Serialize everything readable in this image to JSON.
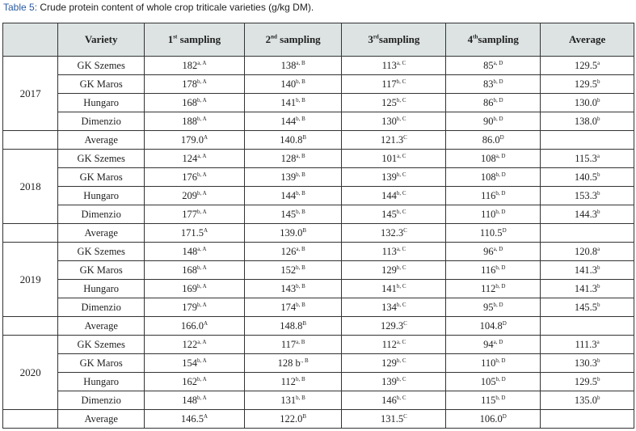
{
  "caption": {
    "label": "Table 5:",
    "text": " Crude protein content of whole crop triticale varieties (g/kg DM)."
  },
  "header": [
    {
      "text": "",
      "sup": ""
    },
    {
      "text": "Variety",
      "sup": ""
    },
    {
      "text": "1",
      "sup": "st",
      "rest": " sampling"
    },
    {
      "text": "2",
      "sup": "nd",
      "rest": " sampling"
    },
    {
      "text": "3",
      "sup": "rd",
      "rest": "sampling"
    },
    {
      "text": "4",
      "sup": "th",
      "rest": "sampling"
    },
    {
      "text": "Average",
      "sup": ""
    }
  ],
  "groups": [
    {
      "year": "2017",
      "rows": [
        {
          "variety": "GK Szemes",
          "cells": [
            [
              "182",
              "a, A"
            ],
            [
              "138",
              "a, B"
            ],
            [
              "113",
              "a, C"
            ],
            [
              "85",
              "a, D"
            ],
            [
              "129.5",
              "a"
            ]
          ]
        },
        {
          "variety": "GK Maros",
          "cells": [
            [
              "178",
              "b, A"
            ],
            [
              "140",
              "b, B"
            ],
            [
              "117",
              "b, C"
            ],
            [
              "83",
              "b, D"
            ],
            [
              "129.5",
              "b"
            ]
          ]
        },
        {
          "variety": "Hungaro",
          "cells": [
            [
              "168",
              "b, A"
            ],
            [
              "141",
              "b, B"
            ],
            [
              "125",
              "b, C"
            ],
            [
              "86",
              "b, D"
            ],
            [
              "130.0",
              "b"
            ]
          ]
        },
        {
          "variety": "Dimenzio",
          "cells": [
            [
              "188",
              "b, A"
            ],
            [
              "144",
              "b, B"
            ],
            [
              "130",
              "b, C"
            ],
            [
              "90",
              "b, D"
            ],
            [
              "138.0",
              "b"
            ]
          ]
        }
      ],
      "average": {
        "label": "Average",
        "cells": [
          [
            "179.0",
            "A"
          ],
          [
            "140.8",
            "B"
          ],
          [
            "121.3",
            "C"
          ],
          [
            "86.0",
            "D"
          ],
          [
            "",
            ""
          ]
        ]
      }
    },
    {
      "year": "2018",
      "rows": [
        {
          "variety": "GK Szemes",
          "cells": [
            [
              "124",
              "a, A"
            ],
            [
              "128",
              "a, B"
            ],
            [
              "101",
              "a, C"
            ],
            [
              "108",
              "a, D"
            ],
            [
              "115.3",
              "a"
            ]
          ]
        },
        {
          "variety": "GK Maros",
          "cells": [
            [
              "176",
              "b, A"
            ],
            [
              "139",
              "b, B"
            ],
            [
              "139",
              "b, C"
            ],
            [
              "108",
              "b, D"
            ],
            [
              "140.5",
              "b"
            ]
          ]
        },
        {
          "variety": "Hungaro",
          "cells": [
            [
              "209",
              "b, A"
            ],
            [
              "144",
              "b, B"
            ],
            [
              "144",
              "b, C"
            ],
            [
              "116",
              "b, D"
            ],
            [
              "153.3",
              "b"
            ]
          ]
        },
        {
          "variety": "Dimenzio",
          "cells": [
            [
              "177",
              "b, A"
            ],
            [
              "145",
              "b, B"
            ],
            [
              "145",
              "b, C"
            ],
            [
              "110",
              "b, D"
            ],
            [
              "144.3",
              "b"
            ]
          ]
        }
      ],
      "average": {
        "label": "Average",
        "cells": [
          [
            "171.5",
            "A"
          ],
          [
            "139.0",
            "B"
          ],
          [
            "132.3",
            "C"
          ],
          [
            "110.5",
            "D"
          ],
          [
            "",
            ""
          ]
        ]
      }
    },
    {
      "year": "2019",
      "rows": [
        {
          "variety": "GK Szemes",
          "cells": [
            [
              "148",
              "a, A"
            ],
            [
              "126",
              "a, B"
            ],
            [
              "113",
              "a, C"
            ],
            [
              "96",
              "a, D"
            ],
            [
              "120.8",
              "a"
            ]
          ]
        },
        {
          "variety": "GK Maros",
          "cells": [
            [
              "168",
              "b, A"
            ],
            [
              "152",
              "b, B"
            ],
            [
              "129",
              "b, C"
            ],
            [
              "116",
              "b, D"
            ],
            [
              "141.3",
              "b"
            ]
          ]
        },
        {
          "variety": "Hungaro",
          "cells": [
            [
              "169",
              "b, A"
            ],
            [
              "143",
              "b, B"
            ],
            [
              "141",
              "b, C"
            ],
            [
              "112",
              "b, D"
            ],
            [
              "141.3",
              "b"
            ]
          ]
        },
        {
          "variety": "Dimenzio",
          "cells": [
            [
              "179",
              "b, A"
            ],
            [
              "174",
              "b, B"
            ],
            [
              "134",
              "b, C"
            ],
            [
              "95",
              "b, D"
            ],
            [
              "145.5",
              "b"
            ]
          ]
        }
      ],
      "average": {
        "label": "Average",
        "cells": [
          [
            "166.0",
            "A"
          ],
          [
            "148.8",
            "B"
          ],
          [
            "129.3",
            "C"
          ],
          [
            "104.8",
            "D"
          ],
          [
            "",
            ""
          ]
        ]
      }
    },
    {
      "year": "2020",
      "rows": [
        {
          "variety": "GK Szemes",
          "cells": [
            [
              "122",
              "a, A"
            ],
            [
              "117",
              "a, B"
            ],
            [
              "112",
              "a, C"
            ],
            [
              "94",
              "a, D"
            ],
            [
              "111.3",
              "a"
            ]
          ]
        },
        {
          "variety": "GK Maros",
          "cells": [
            [
              "154",
              "b, A"
            ],
            [
              "128 b",
              "., B"
            ],
            [
              "129",
              "b, C"
            ],
            [
              "110",
              "b, D"
            ],
            [
              "130.3",
              "b"
            ]
          ]
        },
        {
          "variety": "Hungaro",
          "cells": [
            [
              "162",
              "b, A"
            ],
            [
              "112",
              "b, B"
            ],
            [
              "139",
              "b, C"
            ],
            [
              "105",
              "b, D"
            ],
            [
              "129.5",
              "b"
            ]
          ]
        },
        {
          "variety": "Dimenzio",
          "cells": [
            [
              "148",
              "b, A"
            ],
            [
              "131",
              "b, B"
            ],
            [
              "146",
              "b, C"
            ],
            [
              "115",
              "b, D"
            ],
            [
              "135.0",
              "b"
            ]
          ]
        }
      ],
      "average": {
        "label": "Average",
        "cells": [
          [
            "146.5",
            "A"
          ],
          [
            "122.0",
            "B"
          ],
          [
            "131.5",
            "C"
          ],
          [
            "106.0",
            "D"
          ],
          [
            "",
            ""
          ]
        ]
      }
    }
  ]
}
